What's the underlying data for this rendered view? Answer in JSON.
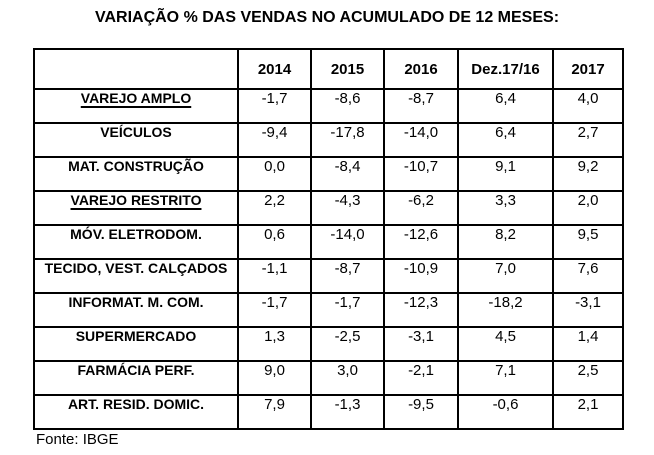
{
  "title": "VARIAÇÃO % DAS VENDAS NO ACUMULADO DE 12 MESES:",
  "source": "Fonte: IBGE",
  "colors": {
    "background": "#ffffff",
    "border": "#000000",
    "text": "#000000"
  },
  "table": {
    "corner_label": "",
    "columns": [
      "2014",
      "2015",
      "2016",
      "Dez.17/16",
      "2017"
    ],
    "rows": [
      {
        "label": "VAREJO AMPLO",
        "underline": true,
        "values": [
          "-1,7",
          "-8,6",
          "-8,7",
          "6,4",
          "4,0"
        ]
      },
      {
        "label": "VEÍCULOS",
        "underline": false,
        "values": [
          "-9,4",
          "-17,8",
          "-14,0",
          "6,4",
          "2,7"
        ]
      },
      {
        "label": "MAT. CONSTRUÇÃO",
        "underline": false,
        "values": [
          "0,0",
          "-8,4",
          "-10,7",
          "9,1",
          "9,2"
        ]
      },
      {
        "label": "VAREJO RESTRITO",
        "underline": true,
        "values": [
          "2,2",
          "-4,3",
          "-6,2",
          "3,3",
          "2,0"
        ]
      },
      {
        "label": "MÓV. ELETRODOM.",
        "underline": false,
        "values": [
          "0,6",
          "-14,0",
          "-12,6",
          "8,2",
          "9,5"
        ]
      },
      {
        "label": "TECIDO, VEST. CALÇADOS",
        "underline": false,
        "values": [
          "-1,1",
          "-8,7",
          "-10,9",
          "7,0",
          "7,6"
        ]
      },
      {
        "label": "INFORMAT. M. COM.",
        "underline": false,
        "values": [
          "-1,7",
          "-1,7",
          "-12,3",
          "-18,2",
          "-3,1"
        ]
      },
      {
        "label": "SUPERMERCADO",
        "underline": false,
        "values": [
          "1,3",
          "-2,5",
          "-3,1",
          "4,5",
          "1,4"
        ]
      },
      {
        "label": "FARMÁCIA PERF.",
        "underline": false,
        "values": [
          "9,0",
          "3,0",
          "-2,1",
          "7,1",
          "2,5"
        ]
      },
      {
        "label": "ART. RESID. DOMIC.",
        "underline": false,
        "values": [
          "7,9",
          "-1,3",
          "-9,5",
          "-0,6",
          "2,1"
        ]
      }
    ]
  },
  "chart_data": {
    "type": "table",
    "title": "VARIAÇÃO % DAS VENDAS NO ACUMULADO DE 12 MESES:",
    "categories": [
      "2014",
      "2015",
      "2016",
      "Dez.17/16",
      "2017"
    ],
    "series": [
      {
        "name": "VAREJO AMPLO",
        "values": [
          -1.7,
          -8.6,
          -8.7,
          6.4,
          4.0
        ]
      },
      {
        "name": "VEÍCULOS",
        "values": [
          -9.4,
          -17.8,
          -14.0,
          6.4,
          2.7
        ]
      },
      {
        "name": "MAT. CONSTRUÇÃO",
        "values": [
          0.0,
          -8.4,
          -10.7,
          9.1,
          9.2
        ]
      },
      {
        "name": "VAREJO RESTRITO",
        "values": [
          2.2,
          -4.3,
          -6.2,
          3.3,
          2.0
        ]
      },
      {
        "name": "MÓV. ELETRODOM.",
        "values": [
          0.6,
          -14.0,
          -12.6,
          8.2,
          9.5
        ]
      },
      {
        "name": "TECIDO, VEST. CALÇADOS",
        "values": [
          -1.1,
          -8.7,
          -10.9,
          7.0,
          7.6
        ]
      },
      {
        "name": "INFORMAT. M. COM.",
        "values": [
          -1.7,
          -1.7,
          -12.3,
          -18.2,
          -3.1
        ]
      },
      {
        "name": "SUPERMERCADO",
        "values": [
          1.3,
          -2.5,
          -3.1,
          4.5,
          1.4
        ]
      },
      {
        "name": "FARMÁCIA PERF.",
        "values": [
          9.0,
          3.0,
          -2.1,
          7.1,
          2.5
        ]
      },
      {
        "name": "ART. RESID. DOMIC.",
        "values": [
          7.9,
          -1.3,
          -9.5,
          -0.6,
          2.1
        ]
      }
    ],
    "source": "Fonte: IBGE",
    "value_unit": "%",
    "decimal_separator": ","
  }
}
